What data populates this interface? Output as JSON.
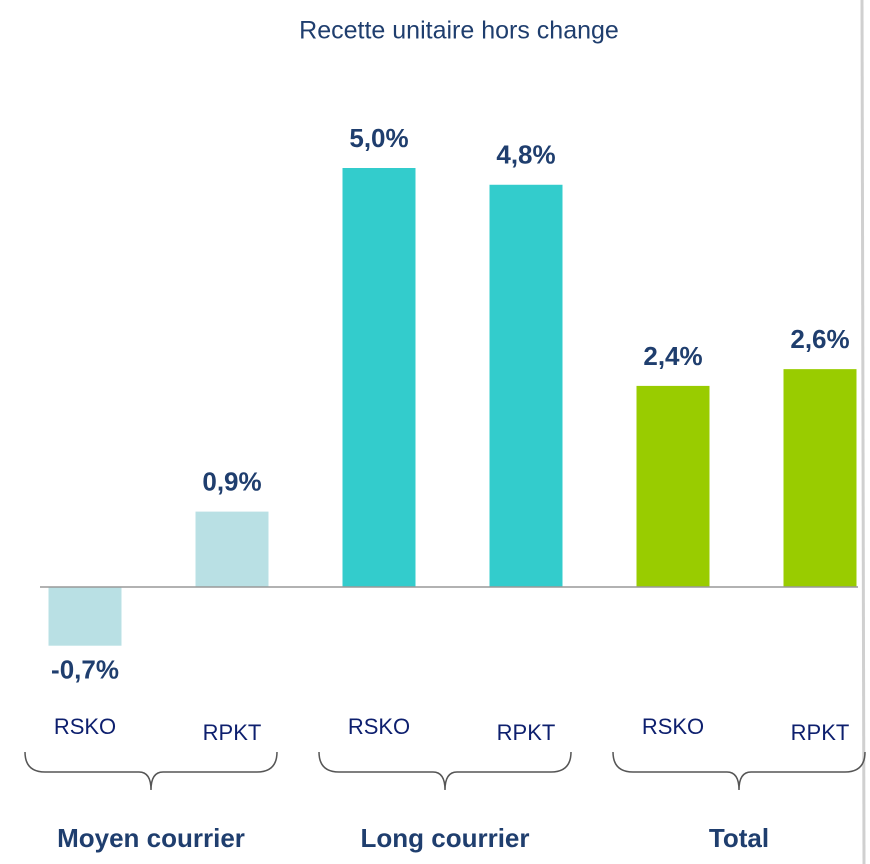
{
  "chart_data": {
    "type": "bar",
    "title": "Recette unitaire hors change",
    "categories": [
      "RSKO",
      "RPKT",
      "RSKO",
      "RPKT",
      "RSKO",
      "RPKT"
    ],
    "values": [
      -0.7,
      0.9,
      5.0,
      4.8,
      2.4,
      2.6
    ],
    "value_labels": [
      "-0,7%",
      "0,9%",
      "5,0%",
      "4,8%",
      "2,4%",
      "2,6%"
    ],
    "colors": [
      "#b9e0e4",
      "#b9e0e4",
      "#33cccc",
      "#33cccc",
      "#99cc00",
      "#99cc00"
    ],
    "groups": [
      "Moyen courrier",
      "Long courrier",
      "Total"
    ],
    "ylim": [
      -0.7,
      5.0
    ]
  }
}
